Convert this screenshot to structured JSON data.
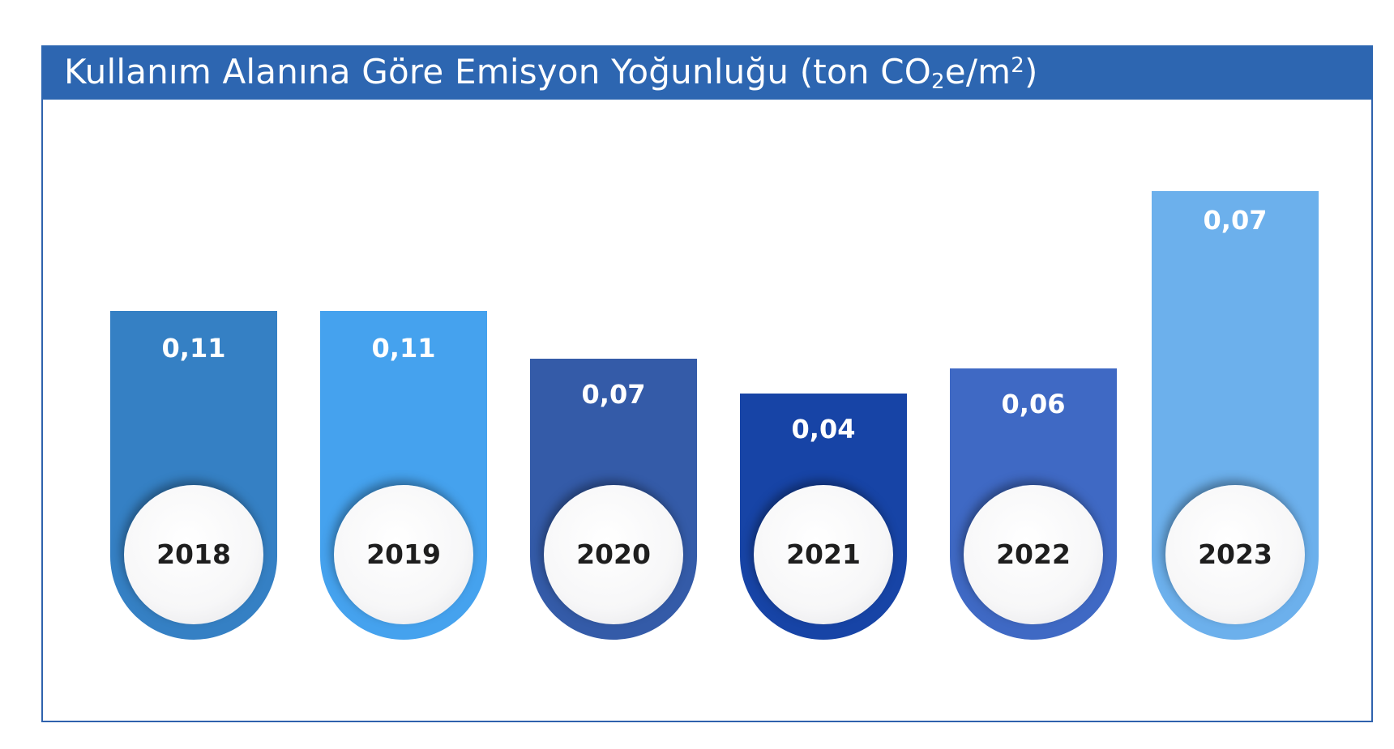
{
  "chart_data": {
    "type": "bar",
    "title_text": "Kullanım Alanına Göre Emisyon Yoğunluğu (ton CO",
    "title_sub": "2",
    "title_mid": "e/m",
    "title_sup": "2",
    "title_end": ")",
    "categories": [
      "2018",
      "2019",
      "2020",
      "2021",
      "2022",
      "2023"
    ],
    "value_labels": [
      "0,11",
      "0,11",
      "0,07",
      "0,04",
      "0,06",
      "0,07"
    ],
    "colors": [
      "#3580c4",
      "#45a2ee",
      "#345ba8",
      "#1744a6",
      "#3f69c4",
      "#6cb0ec"
    ],
    "header_color": "#2d66b1"
  }
}
